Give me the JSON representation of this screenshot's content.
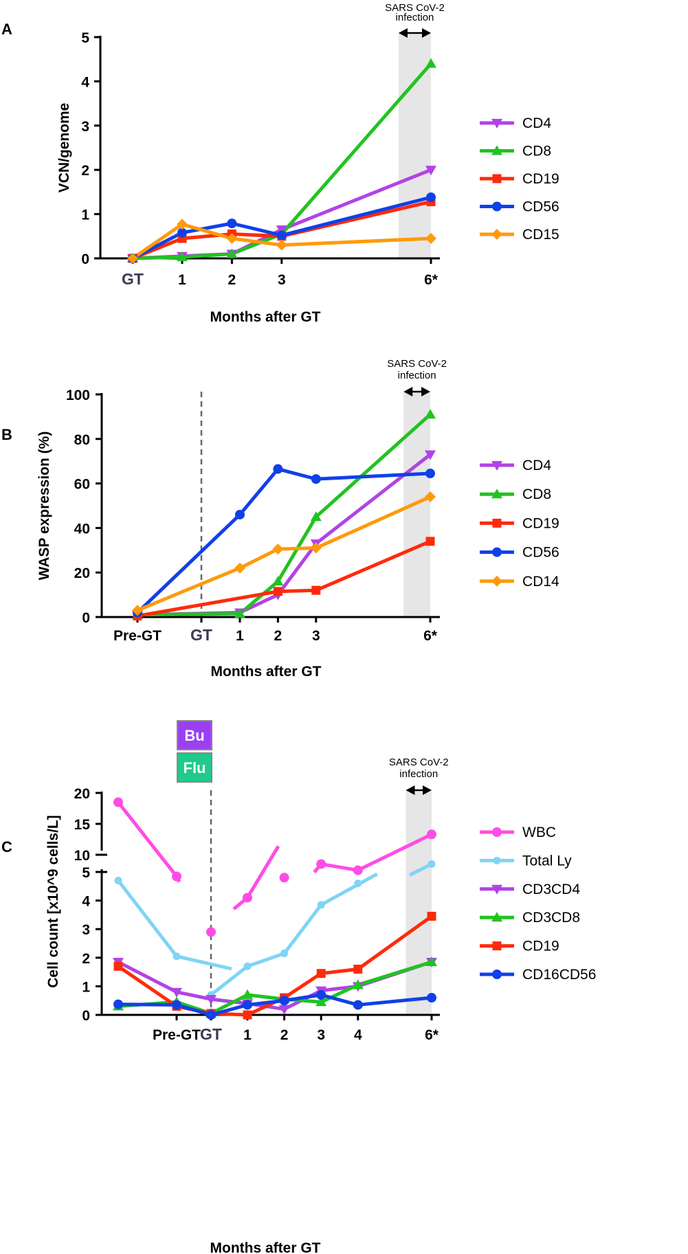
{
  "colors": {
    "CD4": "#b143e6",
    "CD8": "#21c321",
    "CD19": "#ff2a0a",
    "CD56": "#1040e8",
    "CD15": "#ff9a0a",
    "CD14": "#ff9a0a",
    "WBC": "#ff4ce6",
    "Total Ly": "#7fd4f5",
    "CD3CD4": "#b143e6",
    "CD3CD8": "#21c321",
    "CD16CD56": "#1040e8",
    "infection_band": "#e6e6e6",
    "bu_box": "#9b40f0",
    "flu_box": "#1fca8a"
  },
  "chart_data": [
    {
      "panel": "A",
      "type": "line",
      "title": "",
      "xlabel": "Months after GT",
      "ylabel": "VCN/genome",
      "ylim": [
        0,
        5
      ],
      "yticks": [
        0,
        1,
        2,
        3,
        4,
        5
      ],
      "x_ticks": [
        {
          "pos": 0,
          "label": "GT"
        },
        {
          "pos": 1,
          "label": "1"
        },
        {
          "pos": 2,
          "label": "2"
        },
        {
          "pos": 3,
          "label": "3"
        },
        {
          "pos": 6,
          "label": "6*"
        }
      ],
      "annotation": {
        "line1": "SARS CoV-2",
        "line2": "infection",
        "x_from": 5.35,
        "x_to": 6
      },
      "series": [
        {
          "name": "CD4",
          "marker": "tri-down",
          "x": [
            0,
            1,
            2,
            3,
            6
          ],
          "values": [
            0,
            0.05,
            0.1,
            0.65,
            2.0
          ]
        },
        {
          "name": "CD8",
          "marker": "tri-up",
          "x": [
            0,
            1,
            2,
            3,
            6
          ],
          "values": [
            0,
            0.03,
            0.1,
            0.55,
            4.4
          ]
        },
        {
          "name": "CD19",
          "marker": "square",
          "x": [
            0,
            1,
            2,
            3,
            6
          ],
          "values": [
            0,
            0.45,
            0.55,
            0.5,
            1.28
          ]
        },
        {
          "name": "CD56",
          "marker": "circle",
          "x": [
            0,
            1,
            2,
            3,
            6
          ],
          "values": [
            0,
            0.58,
            0.79,
            0.52,
            1.38
          ]
        },
        {
          "name": "CD15",
          "marker": "diamond",
          "x": [
            0,
            1,
            2,
            3,
            6
          ],
          "values": [
            0,
            0.77,
            0.45,
            0.3,
            0.45
          ]
        }
      ]
    },
    {
      "panel": "B",
      "type": "line",
      "title": "",
      "xlabel": "Months after GT",
      "ylabel": "WASP expression (%)",
      "ylim": [
        0,
        100
      ],
      "yticks": [
        0,
        20,
        40,
        60,
        80,
        100
      ],
      "x_ticks": [
        {
          "pos": -1,
          "label": "Pre-GT"
        },
        {
          "pos": 0,
          "label": "GT"
        },
        {
          "pos": 1,
          "label": "1"
        },
        {
          "pos": 2,
          "label": "2"
        },
        {
          "pos": 3,
          "label": "3"
        },
        {
          "pos": 6,
          "label": "6*"
        }
      ],
      "annotation": {
        "line1": "SARS CoV-2",
        "line2": "infection",
        "x_from": 5.3,
        "x_to": 6
      },
      "series": [
        {
          "name": "CD4",
          "marker": "tri-down",
          "x": [
            -1,
            1,
            2,
            3,
            6
          ],
          "values": [
            1,
            2,
            10,
            33,
            73
          ]
        },
        {
          "name": "CD8",
          "marker": "tri-up",
          "x": [
            -1,
            1,
            2,
            3,
            6
          ],
          "values": [
            1,
            1.5,
            16,
            45,
            91
          ]
        },
        {
          "name": "CD19",
          "marker": "square",
          "x": [
            -1,
            2,
            3,
            6
          ],
          "values": [
            0.5,
            11.5,
            12,
            34
          ]
        },
        {
          "name": "CD56",
          "marker": "circle",
          "x": [
            -1,
            1,
            2,
            3,
            6
          ],
          "values": [
            2,
            46,
            66.5,
            62,
            64.5
          ]
        },
        {
          "name": "CD14",
          "marker": "diamond",
          "x": [
            -1,
            1,
            2,
            3,
            6
          ],
          "values": [
            3,
            22,
            30.5,
            31,
            54
          ]
        }
      ]
    },
    {
      "panel": "C",
      "type": "line",
      "title": "",
      "xlabel": "Months after GT",
      "ylabel": "Cell count [x10^9 cells/L]",
      "ylim": [
        0,
        20
      ],
      "axis_break": {
        "lower": [
          0,
          5
        ],
        "upper": [
          10,
          20
        ]
      },
      "yticks": [
        0,
        1,
        2,
        3,
        4,
        5,
        10,
        15,
        20
      ],
      "x_ticks": [
        {
          "pos": -1,
          "label": "Pre-GT"
        },
        {
          "pos": 0,
          "label": "GT"
        },
        {
          "pos": 1,
          "label": "1"
        },
        {
          "pos": 2,
          "label": "2"
        },
        {
          "pos": 3,
          "label": "3"
        },
        {
          "pos": 4,
          "label": "4"
        },
        {
          "pos": 6,
          "label": "6*"
        }
      ],
      "annotation": {
        "line1": "SARS CoV-2",
        "line2": "infection",
        "x_from": 5.3,
        "x_to": 6
      },
      "conditioning": [
        {
          "label": "Bu"
        },
        {
          "label": "Flu"
        }
      ],
      "series": [
        {
          "name": "WBC",
          "marker": "circle",
          "x": [
            -2,
            -1,
            0,
            1,
            2,
            3,
            4,
            6
          ],
          "values": [
            18.5,
            6.5,
            2.9,
            4.1,
            6.3,
            8.5,
            7.5,
            13.3
          ]
        },
        {
          "name": "Total Ly",
          "marker": "circle-small",
          "x": [
            -2,
            -1,
            0,
            1,
            2,
            3,
            4,
            6
          ],
          "values": [
            4.7,
            2.05,
            0.7,
            1.7,
            2.15,
            3.85,
            4.6,
            8.5
          ]
        },
        {
          "name": "CD3CD4",
          "marker": "tri-down",
          "x": [
            -2,
            -1,
            0,
            1,
            2,
            3,
            4,
            6
          ],
          "values": [
            1.85,
            0.8,
            0.55,
            0.4,
            0.2,
            0.85,
            1.0,
            1.85
          ]
        },
        {
          "name": "CD3CD8",
          "marker": "tri-up",
          "x": [
            -2,
            -1,
            0,
            1,
            2,
            3,
            4,
            6
          ],
          "values": [
            0.3,
            0.45,
            0.05,
            0.7,
            0.55,
            0.45,
            1.05,
            1.85
          ]
        },
        {
          "name": "CD19",
          "marker": "square",
          "x": [
            -2,
            -1,
            0,
            1,
            2,
            3,
            4,
            6
          ],
          "values": [
            1.7,
            0.3,
            0.05,
            0.0,
            0.6,
            1.45,
            1.6,
            3.45
          ]
        },
        {
          "name": "CD16CD56",
          "marker": "circle",
          "x": [
            -2,
            -1,
            0,
            1,
            2,
            3,
            4,
            6
          ],
          "values": [
            0.37,
            0.35,
            0.0,
            0.35,
            0.5,
            0.7,
            0.35,
            0.6
          ]
        }
      ]
    }
  ]
}
